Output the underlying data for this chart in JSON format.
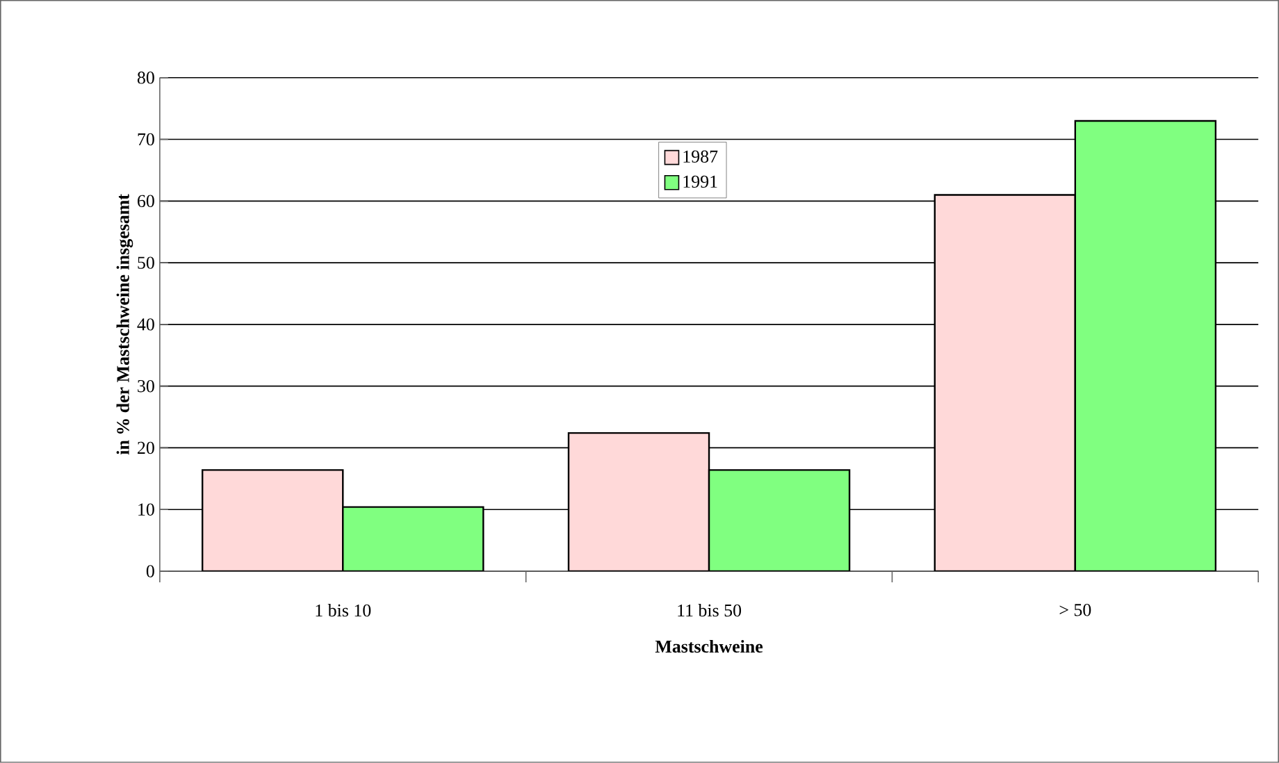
{
  "chart_data": {
    "type": "bar",
    "xlabel": "Mastschweine",
    "ylabel": "in % der Mastschweine insgesamt",
    "categories": [
      "1 bis 10",
      "11 bis 50",
      "> 50"
    ],
    "series": [
      {
        "name": "1987",
        "color": "#ffd9d9",
        "values": [
          16.4,
          22.4,
          61.0
        ]
      },
      {
        "name": "1991",
        "color": "#80ff80",
        "values": [
          10.4,
          16.4,
          73.0
        ]
      }
    ],
    "ylim": [
      0,
      80
    ],
    "yticks": [
      0,
      10,
      20,
      30,
      40,
      50,
      60,
      70,
      80
    ],
    "grid": "y",
    "legend": "top"
  }
}
